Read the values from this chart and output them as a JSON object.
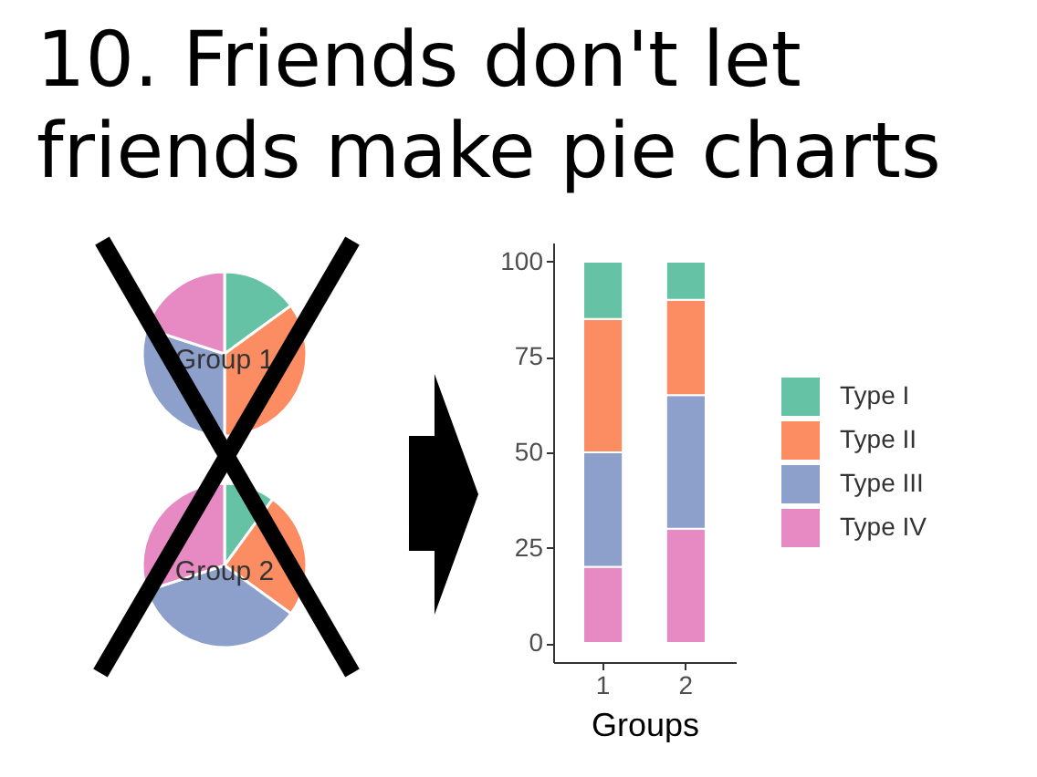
{
  "chart_data": [
    {
      "type": "pie",
      "title": "10. Friends don't let friends make pie charts",
      "categories": [
        null,
        null,
        null,
        null
      ],
      "values": [
        15,
        35,
        30,
        20
      ],
      "colors": [
        "#66c2a5",
        "#fc8d62",
        "#8da0cb",
        "#e78ac3"
      ],
      "annotations": [
        "Group 1"
      ]
    },
    {
      "type": "pie",
      "categories": [
        null,
        null,
        null,
        null
      ],
      "values": [
        10,
        25,
        35,
        30
      ],
      "colors": [
        "#66c2a5",
        "#fc8d62",
        "#8da0cb",
        "#e78ac3"
      ],
      "annotations": [
        "Group 2"
      ]
    },
    {
      "type": "bar",
      "categories": [
        "1",
        "2"
      ],
      "xlabel": "Groups",
      "stacked": true,
      "legend": "right",
      "series": [
        {
          "name": "Type IV",
          "color": "#e78ac3",
          "values": [
            20,
            30
          ]
        },
        {
          "name": "Type III",
          "color": "#8da0cb",
          "values": [
            30,
            35
          ]
        },
        {
          "name": "Type II",
          "color": "#fc8d62",
          "values": [
            35,
            25
          ]
        },
        {
          "name": "Type I",
          "color": "#66c2a5",
          "values": [
            15,
            10
          ]
        }
      ],
      "ylim": [
        -5,
        105
      ],
      "yticks": [
        0,
        25,
        50,
        75,
        100
      ]
    }
  ]
}
